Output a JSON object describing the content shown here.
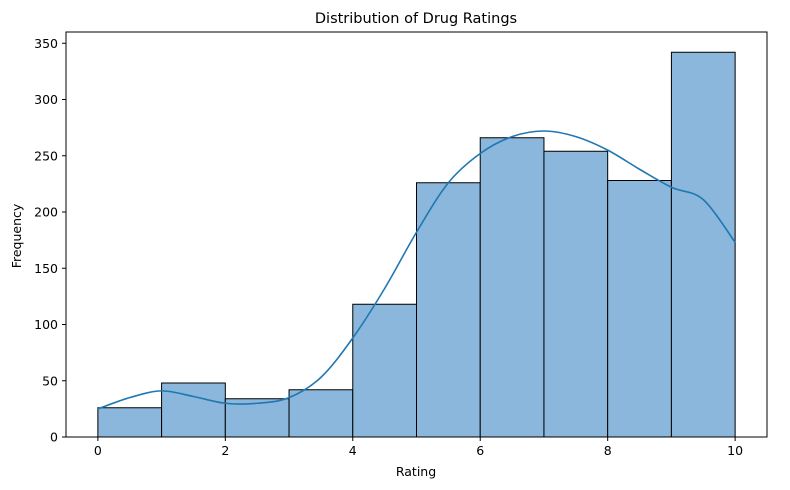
{
  "chart_data": {
    "type": "bar",
    "title": "Distribution of Drug Ratings",
    "xlabel": "Rating",
    "ylabel": "Frequency",
    "xlim": [
      -0.5,
      10.5
    ],
    "ylim": [
      0,
      360
    ],
    "xticks": [
      0,
      2,
      4,
      6,
      8,
      10
    ],
    "yticks": [
      0,
      50,
      100,
      150,
      200,
      250,
      300,
      350
    ],
    "bins": [
      {
        "x0": 0,
        "x1": 1,
        "value": 26
      },
      {
        "x0": 1,
        "x1": 2,
        "value": 48
      },
      {
        "x0": 2,
        "x1": 3,
        "value": 34
      },
      {
        "x0": 3,
        "x1": 4,
        "value": 42
      },
      {
        "x0": 4,
        "x1": 5,
        "value": 118
      },
      {
        "x0": 5,
        "x1": 6,
        "value": 226
      },
      {
        "x0": 6,
        "x1": 7,
        "value": 266
      },
      {
        "x0": 7,
        "x1": 8,
        "value": 254
      },
      {
        "x0": 8,
        "x1": 9,
        "value": 228
      },
      {
        "x0": 9,
        "x1": 10,
        "value": 342
      }
    ],
    "kde": {
      "x": [
        0,
        0.5,
        1,
        1.5,
        2,
        2.5,
        3,
        3.5,
        4,
        4.5,
        5,
        5.5,
        6,
        6.5,
        7,
        7.5,
        8,
        8.5,
        9,
        9.5,
        10
      ],
      "y": [
        25,
        35,
        41,
        36,
        30,
        30,
        35,
        53,
        88,
        132,
        182,
        226,
        252,
        267,
        272,
        267,
        255,
        238,
        222,
        211,
        173
      ]
    },
    "bar_color": "#8ab7db",
    "bar_edge_color": "#000000",
    "line_color": "#1f77b4",
    "grid": false,
    "legend": "none"
  }
}
